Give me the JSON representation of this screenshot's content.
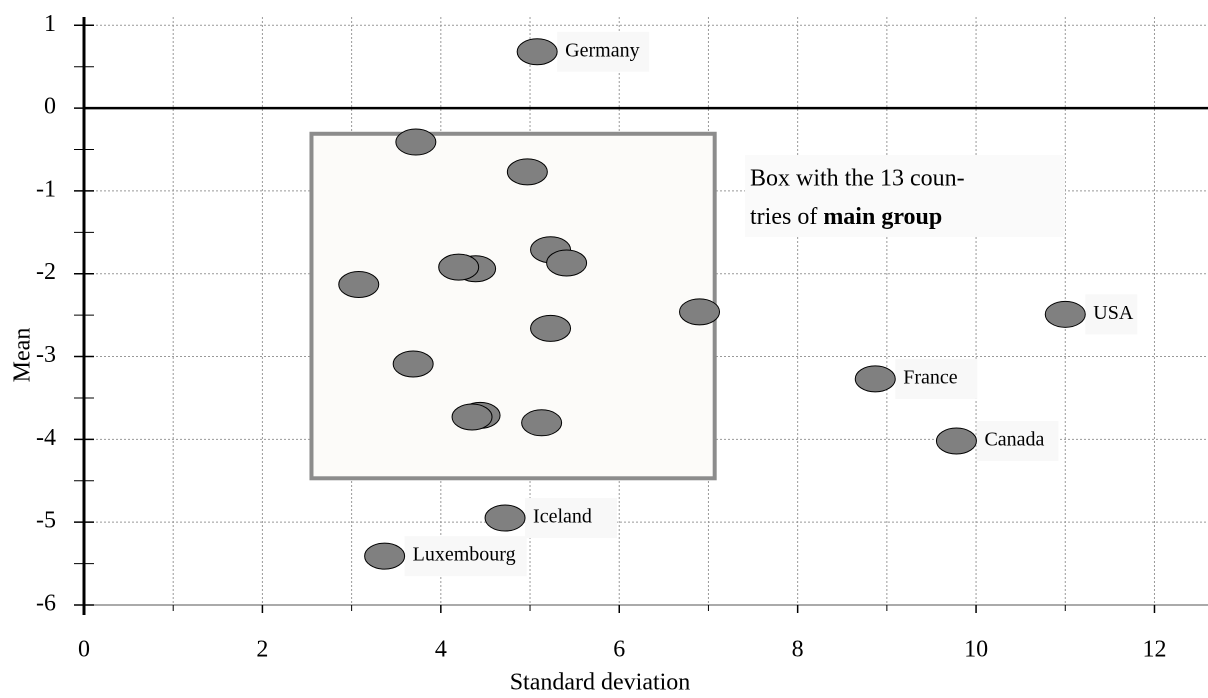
{
  "chart_data": {
    "type": "scatter",
    "x_label": "Standard deviation",
    "y_label": "Mean",
    "xlim": [
      0,
      12.6
    ],
    "ylim": [
      -6,
      1.1
    ],
    "xticks": [
      0,
      2,
      4,
      6,
      8,
      10,
      12
    ],
    "x_minor_ticks": [
      1,
      3,
      5,
      7,
      9,
      11
    ],
    "yticks": [
      -6,
      -5,
      -4,
      -3,
      -2,
      -1,
      0,
      1
    ],
    "y_minor_ticks": [
      -5.5,
      -4.5,
      -3.5,
      -2.5,
      -1.5,
      -0.5,
      0.5
    ],
    "grid": true,
    "color": "#808080",
    "x": [
      5.08,
      3.72,
      4.97,
      5.23,
      5.41,
      4.39,
      4.2,
      3.08,
      6.9,
      5.23,
      11.0,
      3.69,
      8.87,
      4.44,
      4.35,
      5.13,
      9.78,
      4.72,
      3.37
    ],
    "values": [
      0.68,
      -0.41,
      -0.77,
      -1.71,
      -1.87,
      -1.94,
      -1.92,
      -2.13,
      -2.46,
      -2.66,
      -2.49,
      -3.09,
      -3.27,
      -3.71,
      -3.73,
      -3.8,
      -4.02,
      -4.95,
      -5.41
    ],
    "labels": [
      "Germany",
      null,
      null,
      null,
      null,
      null,
      null,
      null,
      null,
      null,
      "USA",
      null,
      "France",
      null,
      null,
      null,
      "Canada",
      "Iceland",
      "Luxembourg"
    ],
    "box": {
      "x": [
        2.55,
        7.07
      ],
      "y": [
        -4.47,
        -0.31
      ]
    },
    "annotation": [
      "Box with the 13 coun-",
      "tries of ",
      "main group"
    ]
  }
}
